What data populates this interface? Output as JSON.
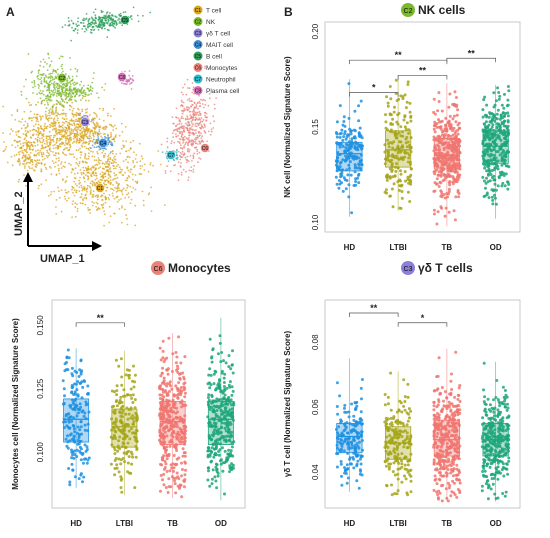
{
  "panel_labels": [
    "A",
    "B"
  ],
  "umap": {
    "xlabel": "UMAP_1",
    "ylabel": "UMAP_2",
    "clusters": [
      {
        "badge": "C1",
        "name": "T cell",
        "color": "#DAA520"
      },
      {
        "badge": "C2",
        "name": "NK",
        "color": "#7CB82F"
      },
      {
        "badge": "C3",
        "name": "γδ T cell",
        "color": "#8B7FD6"
      },
      {
        "badge": "C4",
        "name": "MAIT cell",
        "color": "#3B8FD9"
      },
      {
        "badge": "C5",
        "name": "B cell",
        "color": "#2E9E5B"
      },
      {
        "badge": "C6",
        "name": "Monocytes",
        "color": "#E9837A"
      },
      {
        "badge": "C7",
        "name": "Neutrophil",
        "color": "#2EB8C9"
      },
      {
        "badge": "C8",
        "name": "Plasma cell",
        "color": "#D66FB5"
      }
    ]
  },
  "chart_data": [
    {
      "type": "box",
      "panel": "B-top",
      "title_badge": "C2",
      "title": "NK cells",
      "ylabel": "NK cell (Normalized Signature Score)",
      "ylim": [
        0.095,
        0.205
      ],
      "yticks": [
        0.1,
        0.15,
        0.2
      ],
      "ytick_labels": [
        "0.10",
        "0.15",
        "0.20"
      ],
      "categories": [
        "HD",
        "LTBI",
        "TB",
        "OD"
      ],
      "colors": [
        "#1E90E0",
        "#A5A51A",
        "#F07570",
        "#1FA67A"
      ],
      "n_points": [
        180,
        190,
        380,
        330
      ],
      "boxes": [
        {
          "q1": 0.127,
          "median": 0.136,
          "q3": 0.142,
          "min": 0.103,
          "max": 0.175
        },
        {
          "q1": 0.129,
          "median": 0.138,
          "q3": 0.148,
          "min": 0.106,
          "max": 0.177
        },
        {
          "q1": 0.128,
          "median": 0.135,
          "q3": 0.144,
          "min": 0.098,
          "max": 0.173
        },
        {
          "q1": 0.131,
          "median": 0.14,
          "q3": 0.148,
          "min": 0.102,
          "max": 0.172
        }
      ],
      "significance": [
        {
          "from": "HD",
          "to": "LTBI",
          "label": "*",
          "level": 0.168
        },
        {
          "from": "LTBI",
          "to": "TB",
          "label": "**",
          "level": 0.177
        },
        {
          "from": "TB",
          "to": "OD",
          "label": "**",
          "level": 0.186
        },
        {
          "from": "HD",
          "to": "TB",
          "label": "**",
          "level": 0.185
        }
      ]
    },
    {
      "type": "box",
      "panel": "A-bottom",
      "title_badge": "C6",
      "title": "Monocytes",
      "ylabel": "Monocytes cell (Normalized Signature Score)",
      "ylim": [
        0.078,
        0.16
      ],
      "yticks": [
        0.1,
        0.125,
        0.15
      ],
      "ytick_labels": [
        "0.100",
        "0.125",
        "0.150"
      ],
      "categories": [
        "HD",
        "LTBI",
        "TB",
        "OD"
      ],
      "colors": [
        "#1E90E0",
        "#A5A51A",
        "#F07570",
        "#1FA67A"
      ],
      "n_points": [
        180,
        190,
        380,
        330
      ],
      "boxes": [
        {
          "q1": 0.104,
          "median": 0.113,
          "q3": 0.121,
          "min": 0.086,
          "max": 0.141
        },
        {
          "q1": 0.102,
          "median": 0.11,
          "q3": 0.117,
          "min": 0.083,
          "max": 0.14
        },
        {
          "q1": 0.103,
          "median": 0.112,
          "q3": 0.12,
          "min": 0.082,
          "max": 0.147
        },
        {
          "q1": 0.103,
          "median": 0.113,
          "q3": 0.12,
          "min": 0.081,
          "max": 0.153
        }
      ],
      "significance": [
        {
          "from": "HD",
          "to": "LTBI",
          "label": "**",
          "level": 0.151
        }
      ]
    },
    {
      "type": "box",
      "panel": "B-bottom",
      "title_badge": "C3",
      "title": "γδ T cells",
      "ylabel": "γδ T cell (Normalized Signature Score)",
      "ylim": [
        0.029,
        0.093
      ],
      "yticks": [
        0.04,
        0.06,
        0.08
      ],
      "ytick_labels": [
        "0.04",
        "0.06",
        "0.08"
      ],
      "categories": [
        "HD",
        "LTBI",
        "TB",
        "OD"
      ],
      "colors": [
        "#1E90E0",
        "#A5A51A",
        "#F07570",
        "#1FA67A"
      ],
      "n_points": [
        180,
        190,
        380,
        330
      ],
      "boxes": [
        {
          "q1": 0.046,
          "median": 0.051,
          "q3": 0.055,
          "min": 0.034,
          "max": 0.075
        },
        {
          "q1": 0.044,
          "median": 0.049,
          "q3": 0.054,
          "min": 0.033,
          "max": 0.071
        },
        {
          "q1": 0.045,
          "median": 0.05,
          "q3": 0.056,
          "min": 0.031,
          "max": 0.078
        },
        {
          "q1": 0.045,
          "median": 0.05,
          "q3": 0.055,
          "min": 0.031,
          "max": 0.074
        }
      ],
      "significance": [
        {
          "from": "HD",
          "to": "LTBI",
          "label": "**",
          "level": 0.089
        },
        {
          "from": "LTBI",
          "to": "TB",
          "label": "*",
          "level": 0.086
        }
      ]
    }
  ]
}
